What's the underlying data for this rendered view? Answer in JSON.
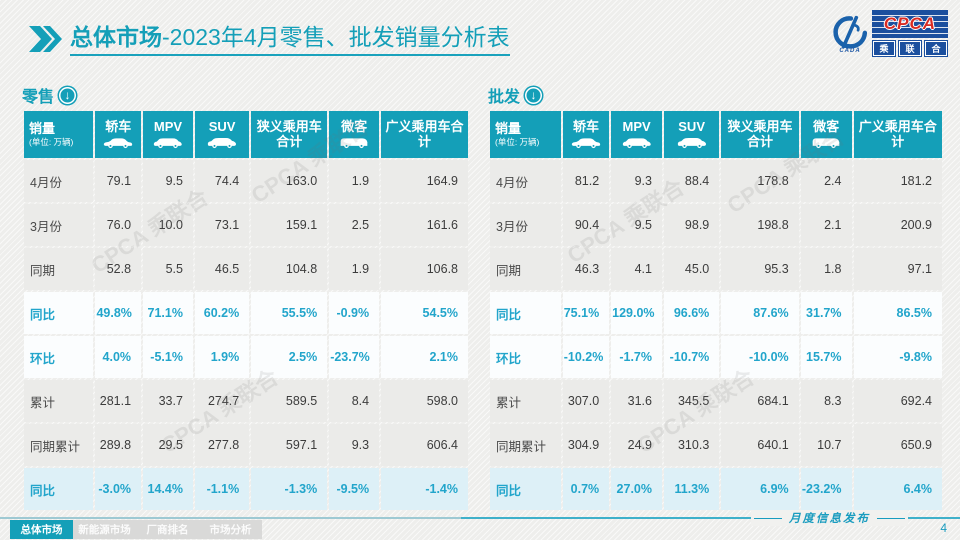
{
  "page": {
    "title_bold": "总体市场",
    "title_rest": "-2023年4月零售、批发销量分析表",
    "footer_caption": "月度信息发布",
    "page_number": "4",
    "watermark": "CPCA 乘联合"
  },
  "logo": {
    "main": "CPCA",
    "swoosh_caption": "CADA",
    "sub_chars": [
      "乘",
      "联",
      "合"
    ]
  },
  "icons": {
    "title_marker": "double-chevron-right",
    "section_marker": "circle-down-arrow",
    "header_vehicles": [
      "sedan-icon",
      "mpv-icon",
      "suv-icon",
      "microvan-icon"
    ]
  },
  "colors": {
    "accent_teal": "#149fb8",
    "percent_text": "#22a5cb",
    "plain_row_bg": "#ebebe9",
    "pct_row_bg": "#fbfdfe",
    "highlight_row_bg": "#ddf0f7",
    "logo_blue": "#1b4f9e",
    "logo_red": "#d92b23"
  },
  "chart_data": {
    "type": "table",
    "unit_label": "(单位: 万辆)",
    "columns": [
      "销量",
      "轿车",
      "MPV",
      "SUV",
      "狭义乘用车合计",
      "微客",
      "广义乘用车合计"
    ],
    "tables": [
      {
        "name": "零售",
        "rows": [
          {
            "label": "4月份",
            "type": "plain",
            "values": [
              "79.1",
              "9.5",
              "74.4",
              "163.0",
              "1.9",
              "164.9"
            ]
          },
          {
            "label": "3月份",
            "type": "plain",
            "values": [
              "76.0",
              "10.0",
              "73.1",
              "159.1",
              "2.5",
              "161.6"
            ]
          },
          {
            "label": "同期",
            "type": "plain",
            "values": [
              "52.8",
              "5.5",
              "46.5",
              "104.8",
              "1.9",
              "106.8"
            ]
          },
          {
            "label": "同比",
            "type": "pct",
            "values": [
              "49.8%",
              "71.1%",
              "60.2%",
              "55.5%",
              "-0.9%",
              "54.5%"
            ]
          },
          {
            "label": "环比",
            "type": "pct",
            "values": [
              "4.0%",
              "-5.1%",
              "1.9%",
              "2.5%",
              "-23.7%",
              "2.1%"
            ]
          },
          {
            "label": "累计",
            "type": "plain",
            "values": [
              "281.1",
              "33.7",
              "274.7",
              "589.5",
              "8.4",
              "598.0"
            ]
          },
          {
            "label": "同期累计",
            "type": "plain",
            "values": [
              "289.8",
              "29.5",
              "277.8",
              "597.1",
              "9.3",
              "606.4"
            ]
          },
          {
            "label": "同比",
            "type": "pct_hl",
            "values": [
              "-3.0%",
              "14.4%",
              "-1.1%",
              "-1.3%",
              "-9.5%",
              "-1.4%"
            ]
          }
        ]
      },
      {
        "name": "批发",
        "rows": [
          {
            "label": "4月份",
            "type": "plain",
            "values": [
              "81.2",
              "9.3",
              "88.4",
              "178.8",
              "2.4",
              "181.2"
            ]
          },
          {
            "label": "3月份",
            "type": "plain",
            "values": [
              "90.4",
              "9.5",
              "98.9",
              "198.8",
              "2.1",
              "200.9"
            ]
          },
          {
            "label": "同期",
            "type": "plain",
            "values": [
              "46.3",
              "4.1",
              "45.0",
              "95.3",
              "1.8",
              "97.1"
            ]
          },
          {
            "label": "同比",
            "type": "pct",
            "values": [
              "75.1%",
              "129.0%",
              "96.6%",
              "87.6%",
              "31.7%",
              "86.5%"
            ]
          },
          {
            "label": "环比",
            "type": "pct",
            "values": [
              "-10.2%",
              "-1.7%",
              "-10.7%",
              "-10.0%",
              "15.7%",
              "-9.8%"
            ]
          },
          {
            "label": "累计",
            "type": "plain",
            "values": [
              "307.0",
              "31.6",
              "345.5",
              "684.1",
              "8.3",
              "692.4"
            ]
          },
          {
            "label": "同期累计",
            "type": "plain",
            "values": [
              "304.9",
              "24.9",
              "310.3",
              "640.1",
              "10.7",
              "650.9"
            ]
          },
          {
            "label": "同比",
            "type": "pct_hl",
            "values": [
              "0.7%",
              "27.0%",
              "11.3%",
              "6.9%",
              "-23.2%",
              "6.4%"
            ]
          }
        ]
      }
    ]
  },
  "footer_tabs": [
    {
      "label": "总体市场",
      "active": true
    },
    {
      "label": "新能源市场",
      "active": false
    },
    {
      "label": "厂商排名",
      "active": false
    },
    {
      "label": "市场分析",
      "active": false
    }
  ]
}
